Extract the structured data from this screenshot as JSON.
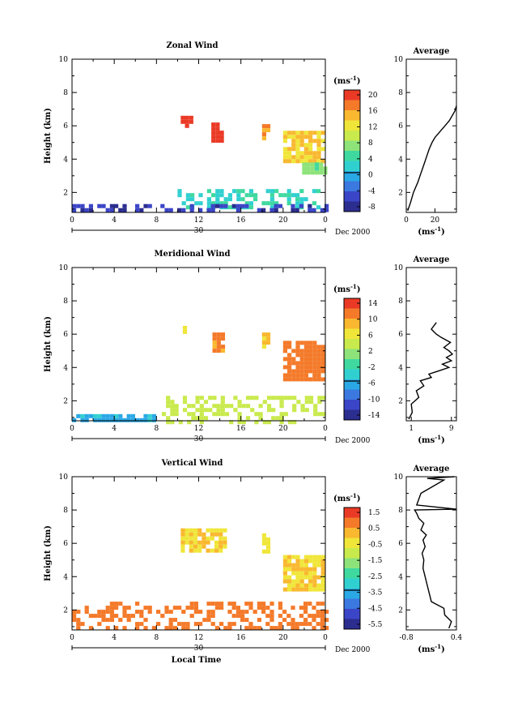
{
  "figure": {
    "xlabel": "Local Time",
    "ylabel": "Height (km)",
    "date_label": "Dec 2000",
    "day_label": "30",
    "x_ticks": [
      "0",
      "4",
      "8",
      "12",
      "16",
      "20",
      "0"
    ],
    "y_ticks": [
      "2",
      "4",
      "6",
      "8",
      "10"
    ],
    "unit_label": "(ms",
    "unit_sup": "-1",
    "unit_close": ")"
  },
  "chart_data": [
    {
      "type": "heatmap",
      "title": "Zonal Wind",
      "xlabel": "Local Time",
      "ylabel": "Height (km)",
      "xlim": [
        0,
        24
      ],
      "ylim": [
        0.8,
        10
      ],
      "colorbar": {
        "unit": "(ms-1)",
        "ticks": [
          "20",
          "16",
          "12",
          "8",
          "4",
          "0",
          "-4",
          "-8"
        ],
        "range": [
          -10,
          22
        ]
      },
      "regions": [
        {
          "x": [
            10.3,
            11.2
          ],
          "y": [
            5.9,
            6.6
          ],
          "value": 21
        },
        {
          "x": [
            13.2,
            14.4
          ],
          "y": [
            5.1,
            6.2
          ],
          "value": 21
        },
        {
          "x": [
            18.0,
            18.6
          ],
          "y": [
            5.2,
            6.1
          ],
          "value": 17
        },
        {
          "x": [
            20.0,
            24.0
          ],
          "y": [
            3.8,
            5.7
          ],
          "value": 14
        },
        {
          "x": [
            21.8,
            24.0
          ],
          "y": [
            3.1,
            3.8
          ],
          "value": 7
        },
        {
          "x": [
            10.0,
            23.5
          ],
          "y": [
            1.0,
            2.2
          ],
          "value": 3
        },
        {
          "x": [
            0.0,
            24.0
          ],
          "y": [
            0.8,
            1.3
          ],
          "value": -7
        }
      ],
      "profile": {
        "title": "Average",
        "xlabel": "(ms-1)",
        "x_ticks": [
          "0",
          "20"
        ],
        "xlim": [
          0,
          35
        ],
        "y_ticks": [
          "2",
          "4",
          "6",
          "8",
          "10"
        ],
        "x": [
          1,
          3,
          5,
          8,
          10,
          12,
          14,
          16,
          18,
          20,
          22,
          24,
          26,
          28,
          30,
          32,
          34,
          35
        ],
        "y": [
          0.9,
          1.4,
          2.0,
          2.6,
          3.1,
          3.6,
          4.1,
          4.6,
          5.0,
          5.3,
          5.5,
          5.7,
          5.9,
          6.1,
          6.3,
          6.6,
          6.9,
          7.2
        ]
      }
    },
    {
      "type": "heatmap",
      "title": "Meridional Wind",
      "xlabel": "Local Time",
      "ylabel": "Height (km)",
      "xlim": [
        0,
        24
      ],
      "ylim": [
        0.8,
        10
      ],
      "colorbar": {
        "unit": "(ms-1)",
        "ticks": [
          "14",
          "10",
          "6",
          "2",
          "-2",
          "-6",
          "-10",
          "-14"
        ],
        "range": [
          -16,
          16
        ]
      },
      "regions": [
        {
          "x": [
            10.5,
            11.0
          ],
          "y": [
            6.0,
            6.5
          ],
          "value": 5
        },
        {
          "x": [
            13.3,
            14.3
          ],
          "y": [
            5.0,
            6.1
          ],
          "value": 11
        },
        {
          "x": [
            18.0,
            18.6
          ],
          "y": [
            5.2,
            6.1
          ],
          "value": 9
        },
        {
          "x": [
            20.0,
            24.0
          ],
          "y": [
            3.2,
            5.6
          ],
          "value": 12
        },
        {
          "x": [
            8.5,
            24.0
          ],
          "y": [
            0.8,
            2.3
          ],
          "value": 4
        },
        {
          "x": [
            0.0,
            8.0
          ],
          "y": [
            0.8,
            1.2
          ],
          "value": -6
        }
      ],
      "profile": {
        "title": "Average",
        "xlabel": "(ms-1)",
        "x_ticks": [
          "1",
          "9"
        ],
        "xlim": [
          0,
          10
        ],
        "y_ticks": [
          "2",
          "4",
          "6",
          "8",
          "10"
        ],
        "x": [
          0.5,
          1.2,
          1.0,
          2.5,
          2.0,
          3.5,
          2.8,
          5.0,
          4.5,
          6.5,
          8.5,
          7.2,
          9.0,
          8.0,
          9.2,
          8.5,
          7.5,
          8.8,
          7.0,
          6.0,
          5.0,
          6.0
        ],
        "y": [
          0.9,
          1.3,
          1.8,
          2.2,
          2.6,
          2.9,
          3.2,
          3.4,
          3.6,
          3.8,
          4.0,
          4.2,
          4.4,
          4.6,
          4.8,
          5.0,
          5.2,
          5.5,
          5.8,
          6.0,
          6.3,
          6.7
        ]
      }
    },
    {
      "type": "heatmap",
      "title": "Vertical Wind",
      "xlabel": "Local Time",
      "ylabel": "Height (km)",
      "xlim": [
        0,
        24
      ],
      "ylim": [
        0.8,
        10
      ],
      "colorbar": {
        "unit": "(ms-1)",
        "ticks": [
          "1.5",
          "0.5",
          "-0.5",
          "-1.5",
          "-2.5",
          "-3.5",
          "-4.5",
          "-5.5"
        ],
        "range": [
          -6,
          2
        ]
      },
      "regions": [
        {
          "x": [
            10.3,
            14.7
          ],
          "y": [
            5.6,
            6.9
          ],
          "value": 0.0
        },
        {
          "x": [
            18.0,
            18.6
          ],
          "y": [
            5.5,
            6.6
          ],
          "value": -0.1
        },
        {
          "x": [
            20.0,
            24.0
          ],
          "y": [
            3.2,
            5.3
          ],
          "value": 0.0
        },
        {
          "x": [
            0.0,
            24.0
          ],
          "y": [
            0.8,
            2.5
          ],
          "value": 1.0
        }
      ],
      "profile": {
        "title": "Average",
        "xlabel": "(ms-1)",
        "x_ticks": [
          "-0.8",
          "0.4"
        ],
        "xlim": [
          -0.8,
          0.4
        ],
        "y_ticks": [
          "2",
          "4",
          "6",
          "8",
          "10"
        ],
        "x": [
          0.22,
          0.28,
          0.12,
          0.1,
          -0.2,
          -0.25,
          -0.3,
          -0.35,
          -0.4,
          -0.38,
          -0.42,
          -0.35,
          -0.4,
          -0.32,
          -0.45,
          -0.38,
          -0.5,
          -0.55,
          -0.6,
          0.4,
          -0.55,
          -0.45,
          0.1,
          -0.3,
          0.35
        ],
        "y": [
          0.9,
          1.3,
          1.7,
          2.1,
          2.5,
          3.0,
          3.5,
          4.0,
          4.5,
          5.0,
          5.4,
          5.8,
          6.2,
          6.5,
          6.8,
          7.2,
          7.5,
          7.8,
          8.0,
          8.05,
          8.3,
          9.0,
          9.8,
          9.9,
          10.0
        ]
      }
    }
  ]
}
